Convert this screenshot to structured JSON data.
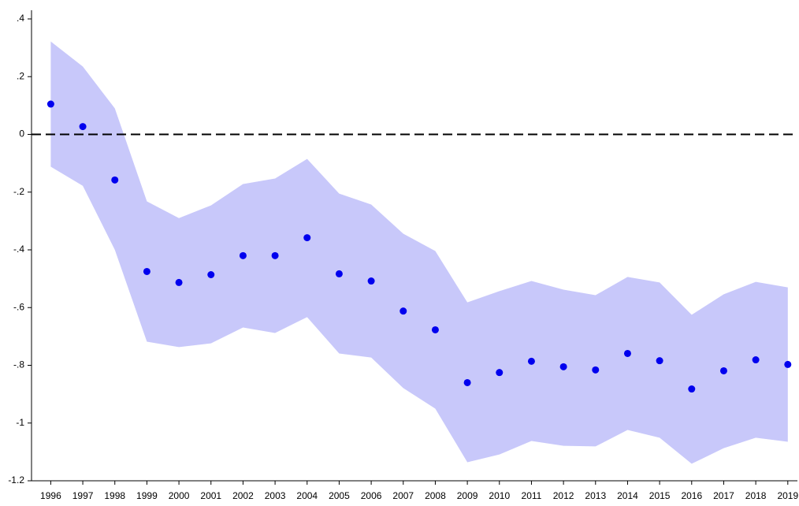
{
  "chart_data": {
    "type": "scatter",
    "x": [
      1996,
      1997,
      1998,
      1999,
      2000,
      2001,
      2002,
      2003,
      2004,
      2005,
      2006,
      2007,
      2008,
      2009,
      2010,
      2011,
      2012,
      2013,
      2014,
      2015,
      2016,
      2017,
      2018,
      2019
    ],
    "series": [
      {
        "color": "#0000ee",
        "band_color": "#c8c8fa",
        "values": [
          0.105,
          0.027,
          -0.158,
          -0.475,
          -0.513,
          -0.486,
          -0.42,
          -0.42,
          -0.358,
          -0.483,
          -0.508,
          -0.612,
          -0.677,
          -0.86,
          -0.825,
          -0.786,
          -0.805,
          -0.816,
          -0.759,
          -0.784,
          -0.882,
          -0.819,
          -0.781,
          -0.797
        ],
        "upper": [
          0.322,
          0.235,
          0.09,
          -0.232,
          -0.29,
          -0.246,
          -0.172,
          -0.153,
          -0.085,
          -0.205,
          -0.243,
          -0.344,
          -0.404,
          -0.582,
          -0.543,
          -0.508,
          -0.538,
          -0.557,
          -0.494,
          -0.513,
          -0.625,
          -0.554,
          -0.511,
          -0.53
        ],
        "lower": [
          -0.112,
          -0.178,
          -0.4,
          -0.718,
          -0.737,
          -0.724,
          -0.669,
          -0.688,
          -0.633,
          -0.759,
          -0.773,
          -0.879,
          -0.95,
          -1.136,
          -1.109,
          -1.062,
          -1.079,
          -1.081,
          -1.024,
          -1.051,
          -1.141,
          -1.087,
          -1.051,
          -1.065
        ]
      }
    ],
    "xlim": [
      1995.4,
      2019.3
    ],
    "xticks": [
      1996,
      1997,
      1998,
      1999,
      2000,
      2001,
      2002,
      2003,
      2004,
      2005,
      2006,
      2007,
      2008,
      2009,
      2010,
      2011,
      2012,
      2013,
      2014,
      2015,
      2016,
      2017,
      2018,
      2019
    ],
    "ylim": [
      -1.2,
      0.43
    ],
    "yticks": [
      {
        "value": 0.4,
        "label": ".4"
      },
      {
        "value": 0.2,
        "label": ".2"
      },
      0,
      {
        "value": -0.2,
        "label": "-.2"
      },
      {
        "value": -0.4,
        "label": "-.4"
      },
      {
        "value": -0.6,
        "label": "-.6"
      },
      {
        "value": -0.8,
        "label": "-.8"
      },
      -1,
      -1.2
    ],
    "reference_line": 0
  }
}
